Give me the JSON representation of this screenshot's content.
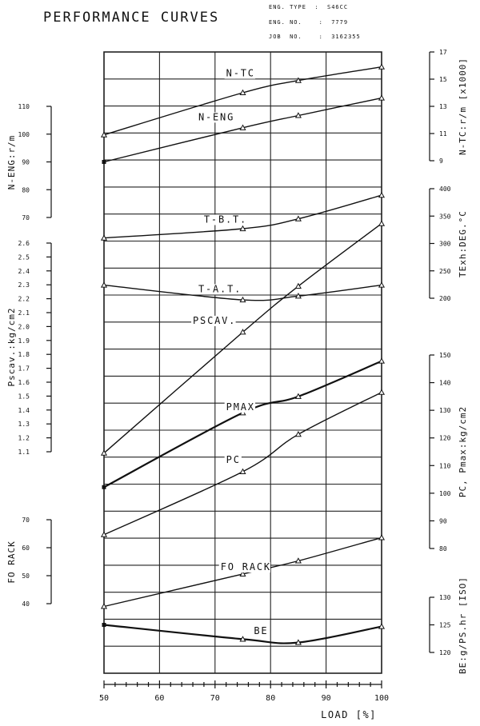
{
  "header": {
    "title": "PERFORMANCE CURVES",
    "eng_type": "ENG. TYPE  :  S46CC",
    "eng_no": "ENG. NO.    :  7779",
    "job_no": "JOB  NO.    :  3162355"
  },
  "chart_data": {
    "type": "line",
    "title": "PERFORMANCE CURVES",
    "xlabel": "LOAD [%]",
    "xlim": [
      50,
      100
    ],
    "xticks": [
      50,
      60,
      70,
      80,
      90,
      100
    ],
    "grid": true,
    "axes": {
      "n_eng": {
        "label": "N-ENG:r/m",
        "side": "left",
        "ticks": [
          70,
          80,
          90,
          100,
          110
        ],
        "lim": [
          70,
          110
        ]
      },
      "pscav": {
        "label": "Pscav.:kg/cm2",
        "side": "left",
        "ticks": [
          "1.1",
          "1.2",
          "1.3",
          "1.4",
          "1.5",
          "1.6",
          "1.7",
          "1.8",
          "1.9",
          "2.0",
          "2.1",
          "2.2",
          "2.3",
          "2.4",
          "2.5",
          "2.6"
        ],
        "lim": [
          1.1,
          2.6
        ]
      },
      "fo_rack": {
        "label": "FO RACK",
        "side": "left",
        "ticks": [
          40,
          50,
          60,
          70
        ],
        "lim": [
          40,
          70
        ]
      },
      "n_tc": {
        "label": "N-TC:r/m [x1000]",
        "side": "right",
        "ticks": [
          9,
          11,
          13,
          15,
          17
        ],
        "lim": [
          9,
          17
        ]
      },
      "texh": {
        "label": "TExh:DEG.°C",
        "side": "right",
        "ticks": [
          200,
          250,
          300,
          350,
          400
        ],
        "lim": [
          200,
          400
        ]
      },
      "pc_pmax": {
        "label": "PC, Pmax:kg/cm2",
        "side": "right",
        "ticks": [
          80,
          90,
          100,
          110,
          120,
          130,
          140,
          150
        ],
        "lim": [
          80,
          150
        ]
      },
      "be": {
        "label": "BE:g/PS.hr [ISO]",
        "side": "right",
        "ticks": [
          120,
          125,
          130
        ],
        "lim": [
          120,
          130
        ]
      }
    },
    "series": [
      {
        "name": "N-TC",
        "axis": "n_tc",
        "x": [
          50,
          75,
          85,
          100
        ],
        "y": [
          10.9,
          14.0,
          14.9,
          15.9
        ],
        "label_pos": [
          72,
          15.2
        ]
      },
      {
        "name": "N-ENG",
        "axis": "n_eng",
        "x": [
          50,
          75,
          85,
          100
        ],
        "y": [
          90.0,
          102.3,
          106.7,
          113.0
        ],
        "label_pos": [
          67,
          105
        ]
      },
      {
        "name": "T-B.T.",
        "axis": "texh",
        "x": [
          50,
          75,
          85,
          100
        ],
        "y": [
          310,
          327,
          345,
          388
        ],
        "label_pos": [
          68,
          338
        ]
      },
      {
        "name": "T-A.T.",
        "axis": "texh",
        "x": [
          50,
          75,
          85,
          100
        ],
        "y": [
          224,
          197,
          204,
          224
        ],
        "label_pos": [
          67,
          211
        ]
      },
      {
        "name": "PSCAV.",
        "axis": "pscav",
        "x": [
          50,
          75,
          85,
          100
        ],
        "y": [
          1.09,
          1.96,
          2.29,
          2.74
        ],
        "label_pos": [
          66,
          2.02
        ]
      },
      {
        "name": "PMAX",
        "axis": "pc_pmax",
        "x": [
          50,
          75,
          85,
          100
        ],
        "y": [
          102.2,
          129.1,
          135.0,
          147.8
        ],
        "label_pos": [
          72,
          130
        ]
      },
      {
        "name": "PC",
        "axis": "pc_pmax",
        "x": [
          50,
          75,
          85,
          100
        ],
        "y": [
          85.0,
          107.8,
          121.3,
          136.5
        ],
        "label_pos": [
          72,
          111
        ]
      },
      {
        "name": "FO RACK",
        "axis": "fo_rack",
        "x": [
          50,
          75,
          85,
          100
        ],
        "y": [
          39.0,
          50.6,
          55.3,
          63.6
        ],
        "label_pos": [
          71,
          52
        ]
      },
      {
        "name": "BE",
        "axis": "be",
        "x": [
          50,
          75,
          85,
          100
        ],
        "y": [
          125.0,
          122.4,
          121.8,
          124.7
        ],
        "label_pos": [
          77,
          123.3
        ]
      }
    ]
  }
}
